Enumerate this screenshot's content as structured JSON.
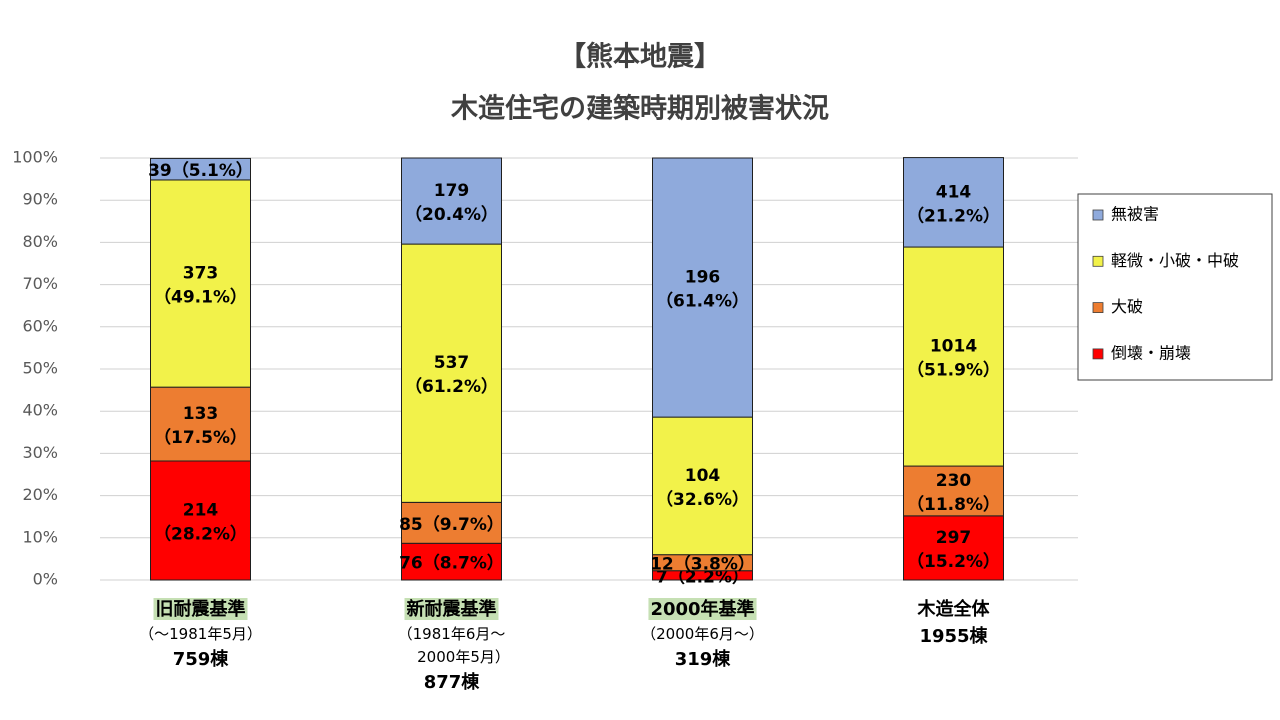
{
  "chart_data": {
    "type": "stacked_bar",
    "title": "【熊本地震】",
    "subtitle": "木造住宅の建築時期別被害状況",
    "categories": [
      "旧耐震基準",
      "新耐震基準",
      "2000年基準",
      "木造全体"
    ],
    "category_periods": [
      "（～1981年5月）",
      "（1981年6月～\n2000年5月）",
      "（2000年6月～）",
      null
    ],
    "category_totals": [
      "759棟",
      "877棟",
      "319棟",
      "1955棟"
    ],
    "category_highlight": [
      true,
      true,
      true,
      false
    ],
    "category_highlight_color": "#c6e0b4",
    "series": [
      {
        "name": "倒壊・崩壊",
        "color": "#ff0000",
        "values": [
          28.2,
          8.7,
          2.2,
          15.2
        ],
        "value_labels": [
          "214\n（28.2%）",
          "76（8.7%）",
          "7（2.2%）",
          "297\n（15.2%）"
        ]
      },
      {
        "name": "大破",
        "color": "#ed7d31",
        "values": [
          17.5,
          9.7,
          3.8,
          11.8
        ],
        "value_labels": [
          "133\n（17.5%）",
          "85（9.7%）",
          "12（3.8%）",
          "230\n（11.8%）"
        ]
      },
      {
        "name": "軽微・小破・中破",
        "color": "#f2f24a",
        "values": [
          49.1,
          61.2,
          32.6,
          51.9
        ],
        "value_labels": [
          "373\n（49.1%）",
          "537\n（61.2%）",
          "104\n（32.6%）",
          "1014\n（51.9%）"
        ]
      },
      {
        "name": "無被害",
        "color": "#8faadc",
        "values": [
          5.1,
          20.4,
          61.4,
          21.2
        ],
        "value_labels": [
          "39（5.1%）",
          "179\n（20.4%）",
          "196\n（61.4%）",
          "414\n（21.2%）"
        ]
      }
    ],
    "ylim": [
      0,
      100
    ],
    "yticks": [
      {
        "value": 0,
        "label": "0%"
      },
      {
        "value": 10,
        "label": "10%"
      },
      {
        "value": 20,
        "label": "20%"
      },
      {
        "value": 30,
        "label": "30%"
      },
      {
        "value": 40,
        "label": "40%"
      },
      {
        "value": 50,
        "label": "50%"
      },
      {
        "value": 60,
        "label": "60%"
      },
      {
        "value": 70,
        "label": "70%"
      },
      {
        "value": 80,
        "label": "80%"
      },
      {
        "value": 90,
        "label": "90%"
      },
      {
        "value": 100,
        "label": "100%"
      }
    ],
    "grid": true,
    "legend": "right"
  }
}
